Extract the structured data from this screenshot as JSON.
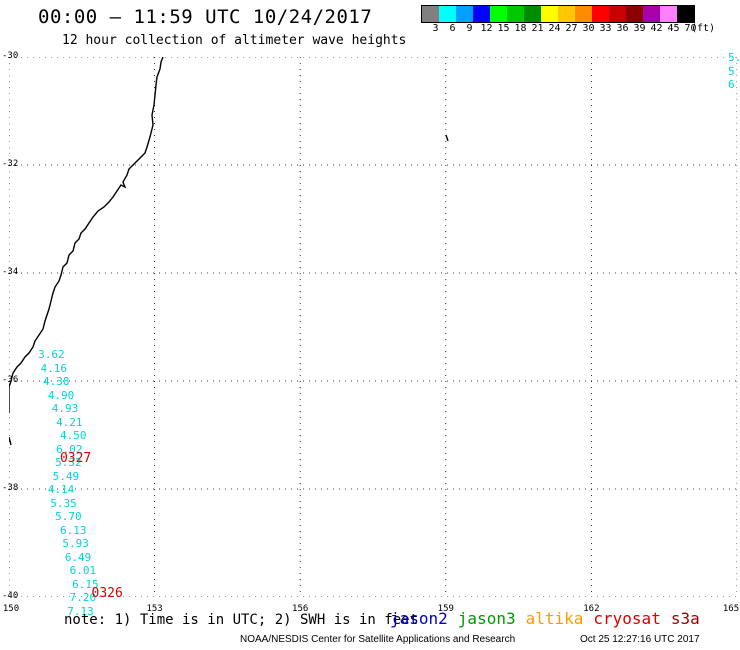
{
  "header": {
    "title": "00:00 – 11:59 UTC 10/24/2017",
    "subtitle": "12 hour collection of altimeter wave heights"
  },
  "legend": {
    "unit": "(ft)",
    "bins": [
      {
        "label": "3",
        "color": "#808080"
      },
      {
        "label": "6",
        "color": "#00ffff"
      },
      {
        "label": "9",
        "color": "#00a0ff"
      },
      {
        "label": "12",
        "color": "#0000ff"
      },
      {
        "label": "15",
        "color": "#00ff00"
      },
      {
        "label": "18",
        "color": "#00c800"
      },
      {
        "label": "21",
        "color": "#008c00"
      },
      {
        "label": "24",
        "color": "#ffff00"
      },
      {
        "label": "27",
        "color": "#ffc800"
      },
      {
        "label": "30",
        "color": "#ff8c00"
      },
      {
        "label": "33",
        "color": "#ff0000"
      },
      {
        "label": "36",
        "color": "#c80000"
      },
      {
        "label": "39",
        "color": "#8c0000"
      },
      {
        "label": "42",
        "color": "#aa00aa"
      },
      {
        "label": "45",
        "color": "#ff80ff"
      },
      {
        "label": "70",
        "color": "#000000"
      }
    ]
  },
  "map": {
    "lat_ticks": [
      "-30",
      "-32",
      "-34",
      "-36",
      "-38",
      "-40"
    ],
    "lon_ticks": [
      "150",
      "153",
      "156",
      "159",
      "162",
      "165"
    ],
    "lat_range": [
      -40,
      -30
    ],
    "lon_range": [
      150,
      165
    ],
    "track_color": "#00d5d5",
    "pass_color": "#dd0000",
    "track_main": {
      "lon": [
        150.6,
        150.65,
        150.7,
        150.8,
        150.88,
        150.97,
        151.05,
        150.97,
        150.95,
        150.9,
        150.8,
        150.85,
        150.95,
        151.05,
        151.1,
        151.15,
        151.25,
        151.3,
        151.25,
        151.2,
        151.25,
        151.05
      ],
      "lat": [
        -35.5,
        -35.75,
        -36.0,
        -36.25,
        -36.5,
        -36.75,
        -37.0,
        -37.25,
        -37.5,
        -37.75,
        -38.0,
        -38.25,
        -38.5,
        -38.75,
        -39.0,
        -39.25,
        -39.5,
        -39.75,
        -40.0,
        -40.25,
        -40.5,
        -40.75
      ],
      "values": [
        "3.62",
        "4.16",
        "4.38",
        "4.90",
        "4.93",
        "4.21",
        "4.50",
        "6.02",
        "5.32",
        "5.49",
        "4.14",
        "5.35",
        "5.70",
        "6.13",
        "5.93",
        "6.49",
        "6.01",
        "6.15",
        "7.20",
        "7.13"
      ]
    },
    "track_edge": {
      "lon": [
        164.9,
        164.95,
        165.0
      ],
      "lat": [
        -30.0,
        -30.25,
        -30.5
      ],
      "values": [
        "5.",
        "5",
        "6"
      ]
    },
    "passes": [
      {
        "label": "0327",
        "lon": 151.05,
        "lat": -37.45
      },
      {
        "label": "0326",
        "lon": 151.7,
        "lat": -39.95
      }
    ]
  },
  "footer": {
    "note": "note: 1) Time is in UTC; 2) SWH is in feet",
    "satellites": [
      {
        "name": "jason2",
        "color": "#0000cc"
      },
      {
        "name": "jason3",
        "color": "#009900"
      },
      {
        "name": "altika",
        "color": "#ff9900"
      },
      {
        "name": "cryosat",
        "color": "#dd0000"
      },
      {
        "name": "s3a",
        "color": "#990000"
      }
    ],
    "credit": "NOAA/NESDIS Center for Satellite Applications and Research",
    "timestamp": "Oct 25 12:27:16 UTC 2017"
  }
}
